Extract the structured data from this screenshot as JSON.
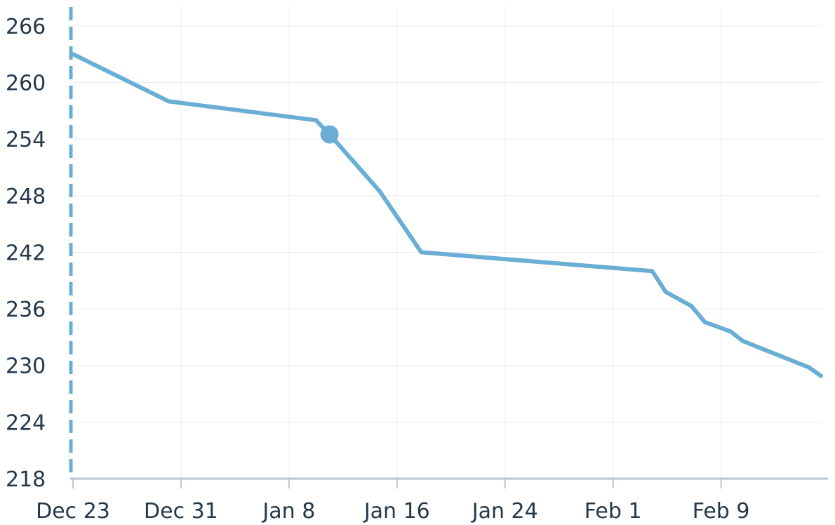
{
  "chart_data": {
    "type": "line",
    "title": "",
    "xlabel": "",
    "ylabel": "",
    "x_tick_labels": [
      "Dec 23",
      "Dec 31",
      "Jan 8",
      "Jan 16",
      "Jan 24",
      "Feb 1",
      "Feb 9"
    ],
    "x_tick_days": [
      0,
      8,
      16,
      24,
      32,
      40,
      48
    ],
    "y_tick_labels": [
      "218",
      "224",
      "230",
      "236",
      "242",
      "248",
      "254",
      "260",
      "266"
    ],
    "y_ticks": [
      218,
      224,
      230,
      236,
      242,
      248,
      254,
      260,
      266
    ],
    "xlim_days": [
      0,
      55.4
    ],
    "ylim": [
      218,
      268
    ],
    "grid": true,
    "legend": "none",
    "series": [
      {
        "x_days": [
          0,
          7.1,
          18,
          19,
          22.7,
          25.8,
          42.9,
          43.9,
          45.8,
          46.8,
          48.7,
          49.6,
          54.5,
          55.4
        ],
        "values": [
          263.0,
          258.0,
          256.0,
          254.5,
          248.5,
          242.0,
          240.0,
          237.8,
          236.3,
          234.6,
          233.6,
          232.6,
          229.8,
          228.9
        ]
      }
    ],
    "highlight_point": {
      "x_day": 19,
      "value": 254.5
    },
    "reference_line": {
      "x_day": 0,
      "style": "dashed"
    },
    "colors": {
      "line": "#6aaed6",
      "grid": "#e8edf2",
      "axis": "#b8c7d6",
      "text": "#24384a"
    }
  }
}
